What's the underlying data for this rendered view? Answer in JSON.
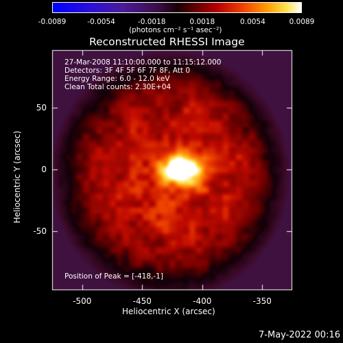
{
  "colorbar": {
    "ticks": [
      "-0.0089",
      "-0.0054",
      "-0.0018",
      "0.0018",
      "0.0054",
      "0.0089"
    ],
    "unit_label": "(photons cm⁻² s⁻¹ asec⁻²)"
  },
  "plot": {
    "title": "Reconstructed RHESSI Image",
    "info_lines": [
      "27-Mar-2008 11:10:00.000 to 11:15:12.000",
      "Detectors: 3F 4F 5F 6F 7F 8F, Att 0",
      "Energy Range: 6.0 - 12.0 keV",
      "Clean    Total counts: 2.30E+04"
    ],
    "peak_label": "Position of Peak = [-418,-1]",
    "date_stamp": "7-May-2022 00:16"
  },
  "chart_data": {
    "type": "heatmap",
    "title": "Reconstructed RHESSI Image",
    "xlabel": "Heliocentric X (arcsec)",
    "ylabel": "Heliocentric Y (arcsec)",
    "xlim": [
      -525,
      -325
    ],
    "ylim": [
      -98,
      97
    ],
    "xticks": [
      "-500",
      "-450",
      "-400",
      "-350"
    ],
    "yticks": [
      "50",
      "0",
      "-50"
    ],
    "colorbar_range": [
      -0.0089,
      0.0089
    ],
    "peak_position": [
      -418,
      -1
    ]
  }
}
